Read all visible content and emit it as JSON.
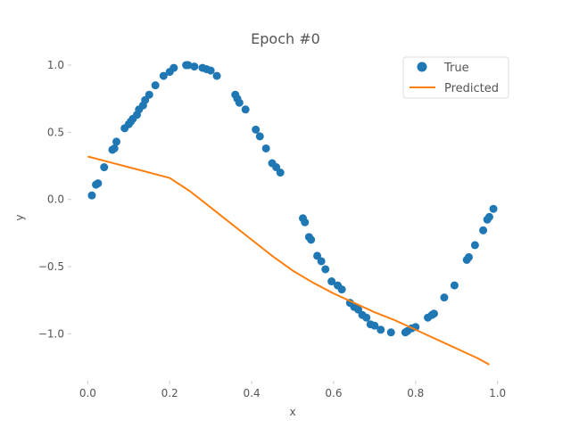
{
  "chart_data": {
    "type": "scatter",
    "title": "Epoch #0",
    "xlabel": "x",
    "ylabel": "y",
    "xlim": [
      -0.04,
      1.04
    ],
    "ylim": [
      -1.35,
      1.1
    ],
    "xticks": [
      "0.0",
      "0.2",
      "0.4",
      "0.6",
      "0.8",
      "1.0"
    ],
    "yticks": [
      "1.0",
      "0.5",
      "0.0",
      "−0.5",
      "−1.0"
    ],
    "xtick_values": [
      0.0,
      0.2,
      0.4,
      0.6,
      0.8,
      1.0
    ],
    "ytick_values": [
      1.0,
      0.5,
      0.0,
      -0.5,
      -1.0
    ],
    "grid": false,
    "legend_position": "top-right",
    "colors": {
      "true": "#1f77b4",
      "predicted": "#ff7f0e"
    },
    "series": [
      {
        "name": "True",
        "kind": "scatter",
        "x": [
          0.01,
          0.02,
          0.025,
          0.04,
          0.06,
          0.065,
          0.07,
          0.09,
          0.1,
          0.105,
          0.11,
          0.12,
          0.125,
          0.135,
          0.14,
          0.15,
          0.165,
          0.185,
          0.2,
          0.21,
          0.24,
          0.245,
          0.26,
          0.28,
          0.29,
          0.3,
          0.315,
          0.36,
          0.365,
          0.37,
          0.385,
          0.41,
          0.42,
          0.435,
          0.45,
          0.46,
          0.47,
          0.525,
          0.53,
          0.54,
          0.545,
          0.56,
          0.57,
          0.58,
          0.595,
          0.61,
          0.62,
          0.64,
          0.65,
          0.66,
          0.67,
          0.68,
          0.69,
          0.7,
          0.715,
          0.74,
          0.775,
          0.78,
          0.79,
          0.8,
          0.83,
          0.84,
          0.845,
          0.87,
          0.895,
          0.925,
          0.93,
          0.945,
          0.965,
          0.975,
          0.98,
          0.99
        ],
        "y": [
          0.03,
          0.11,
          0.12,
          0.24,
          0.37,
          0.38,
          0.43,
          0.53,
          0.56,
          0.58,
          0.6,
          0.63,
          0.67,
          0.7,
          0.74,
          0.78,
          0.85,
          0.92,
          0.95,
          0.98,
          1.0,
          1.0,
          0.99,
          0.98,
          0.97,
          0.96,
          0.92,
          0.78,
          0.75,
          0.72,
          0.67,
          0.52,
          0.47,
          0.38,
          0.27,
          0.24,
          0.2,
          -0.14,
          -0.17,
          -0.28,
          -0.3,
          -0.42,
          -0.46,
          -0.52,
          -0.61,
          -0.64,
          -0.67,
          -0.77,
          -0.8,
          -0.82,
          -0.86,
          -0.88,
          -0.93,
          -0.94,
          -0.97,
          -0.99,
          -0.99,
          -0.98,
          -0.96,
          -0.95,
          -0.88,
          -0.86,
          -0.85,
          -0.73,
          -0.64,
          -0.45,
          -0.43,
          -0.34,
          -0.23,
          -0.15,
          -0.13,
          -0.07
        ]
      },
      {
        "name": "Predicted",
        "kind": "line",
        "x": [
          0.0,
          0.1,
          0.2,
          0.25,
          0.3,
          0.35,
          0.4,
          0.45,
          0.5,
          0.55,
          0.6,
          0.65,
          0.7,
          0.75,
          0.8,
          0.85,
          0.9,
          0.95,
          0.98
        ],
        "y": [
          0.32,
          0.24,
          0.16,
          0.06,
          -0.06,
          -0.18,
          -0.3,
          -0.42,
          -0.53,
          -0.62,
          -0.7,
          -0.77,
          -0.84,
          -0.9,
          -0.97,
          -1.04,
          -1.11,
          -1.18,
          -1.23
        ]
      }
    ]
  }
}
